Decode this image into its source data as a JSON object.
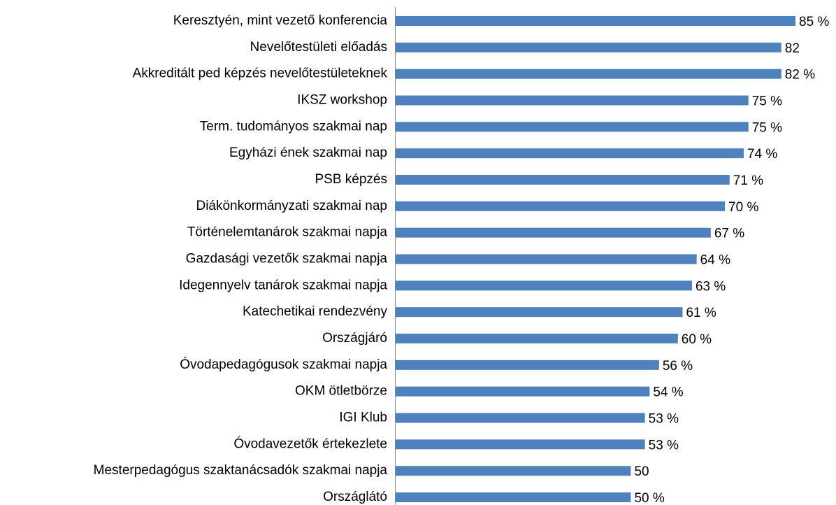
{
  "chart_data": {
    "type": "barh",
    "categories": [
      "Keresztyén, mint vezető konferencia",
      "Nevelőtestületi előadás",
      "Akkreditált ped képzés nevelőtestületeknek",
      "IKSZ workshop",
      "Term. tudományos szakmai nap",
      "Egyházi ének szakmai nap",
      "PSB képzés",
      "Diákönkormányzati szakmai nap",
      "Történelemtanárok szakmai napja",
      "Gazdasági vezetők szakmai napja",
      "Idegennyelv tanárok szakmai napja",
      "Katechetikai rendezvény",
      "Országjáró",
      "Óvodapedagógusok szakmai napja",
      "OKM ötletbörze",
      "IGI Klub",
      "Óvodavezetők értekezlete",
      "Mesterpedagógus szaktanácsadók szakmai napja",
      "Országlátó"
    ],
    "values": [
      85,
      82,
      82,
      75,
      75,
      74,
      71,
      70,
      67,
      64,
      63,
      61,
      60,
      56,
      54,
      53,
      53,
      50,
      50
    ],
    "value_labels": [
      "85 %",
      "82",
      "82 %",
      "75 %",
      "75 %",
      "74 %",
      "71 %",
      "70 %",
      "67 %",
      "64 %",
      "63 %",
      "61 %",
      "60 %",
      "56 %",
      "54 %",
      "53 %",
      "53 %",
      "50",
      "50 %"
    ],
    "color": "#4f81bd"
  }
}
